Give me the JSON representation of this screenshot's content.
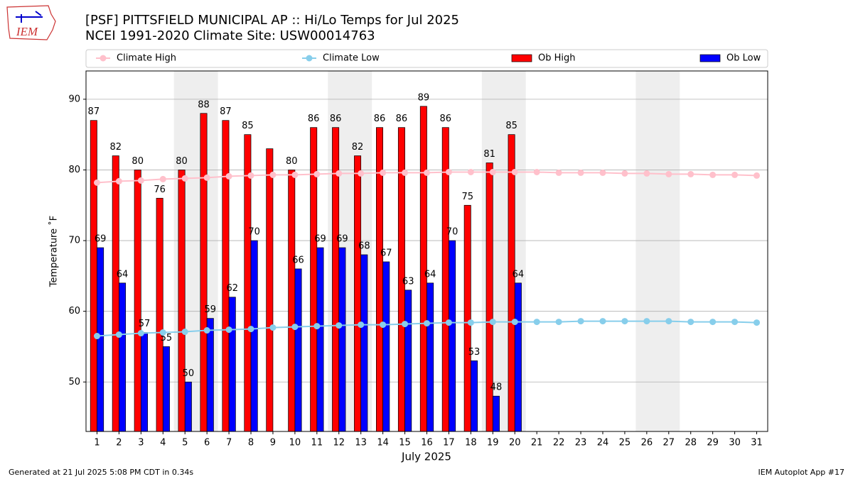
{
  "chart_data": {
    "type": "bar",
    "title": "[PSF] PITTSFIELD MUNICIPAL AP :: Hi/Lo Temps for Jul 2025",
    "subtitle": "NCEI 1991-2020 Climate Site: USW00014763",
    "logo": "IEM",
    "x_label": "July 2025",
    "y_label": "Temperature ˚F",
    "x": [
      1,
      2,
      3,
      4,
      5,
      6,
      7,
      8,
      9,
      10,
      11,
      12,
      13,
      14,
      15,
      16,
      17,
      18,
      19,
      20,
      21,
      22,
      23,
      24,
      25,
      26,
      27,
      28,
      29,
      30,
      31
    ],
    "xlim": [
      0.5,
      31.5
    ],
    "xticks": [
      1,
      2,
      3,
      4,
      5,
      6,
      7,
      8,
      9,
      10,
      11,
      12,
      13,
      14,
      15,
      16,
      17,
      18,
      19,
      20,
      21,
      22,
      23,
      24,
      25,
      26,
      27,
      28,
      29,
      30,
      31
    ],
    "ylim": [
      43,
      94
    ],
    "yticks": [
      50,
      60,
      70,
      80,
      90
    ],
    "grid": true,
    "shaded_spans": [
      [
        4.5,
        6.5
      ],
      [
        11.5,
        13.5
      ],
      [
        18.5,
        20.5
      ],
      [
        25.5,
        27.5
      ]
    ],
    "series": [
      {
        "name": "Climate High",
        "type": "line",
        "color": "#ffc0cb",
        "values": [
          78.2,
          78.4,
          78.5,
          78.7,
          78.8,
          78.9,
          79.1,
          79.2,
          79.3,
          79.3,
          79.4,
          79.5,
          79.5,
          79.6,
          79.6,
          79.6,
          79.7,
          79.7,
          79.7,
          79.7,
          79.7,
          79.6,
          79.6,
          79.6,
          79.5,
          79.5,
          79.4,
          79.4,
          79.3,
          79.3,
          79.2
        ]
      },
      {
        "name": "Climate Low",
        "type": "line",
        "color": "#87ceeb",
        "values": [
          56.5,
          56.7,
          56.9,
          57.0,
          57.1,
          57.3,
          57.4,
          57.5,
          57.7,
          57.8,
          57.9,
          58.0,
          58.1,
          58.1,
          58.2,
          58.3,
          58.4,
          58.4,
          58.5,
          58.5,
          58.5,
          58.5,
          58.6,
          58.6,
          58.6,
          58.6,
          58.6,
          58.5,
          58.5,
          58.5,
          58.4
        ]
      },
      {
        "name": "Ob High",
        "type": "bar",
        "color": "#ff0000",
        "values": [
          87,
          82,
          80,
          76,
          80,
          88,
          87,
          85,
          83,
          80,
          86,
          86,
          82,
          86,
          86,
          89,
          86,
          75,
          81,
          85,
          null,
          null,
          null,
          null,
          null,
          null,
          null,
          null,
          null,
          null,
          null
        ],
        "value_labels": [
          "87",
          "82",
          "80",
          "76",
          "80",
          "88",
          "87",
          "85",
          null,
          "80",
          "86",
          "86",
          "82",
          "86",
          "86",
          "89",
          "86",
          "75",
          "81",
          "85",
          null,
          null,
          null,
          null,
          null,
          null,
          null,
          null,
          null,
          null,
          null
        ]
      },
      {
        "name": "Ob Low",
        "type": "bar",
        "color": "#0000ff",
        "values": [
          69,
          64,
          57,
          55,
          50,
          59,
          62,
          70,
          null,
          66,
          69,
          69,
          68,
          67,
          63,
          64,
          70,
          53,
          48,
          64,
          null,
          null,
          null,
          null,
          null,
          null,
          null,
          null,
          null,
          null,
          null
        ],
        "value_labels": [
          "69",
          "64",
          "57",
          "55",
          "50",
          "59",
          "62",
          "70",
          null,
          "66",
          "69",
          "69",
          "68",
          "67",
          "63",
          "64",
          "70",
          "53",
          "48",
          "64",
          null,
          null,
          null,
          null,
          null,
          null,
          null,
          null,
          null,
          null,
          null
        ]
      }
    ],
    "footer_left": "Generated at 21 Jul 2025 5:08 PM CDT in 0.34s",
    "footer_right": "IEM Autoplot App #17"
  }
}
